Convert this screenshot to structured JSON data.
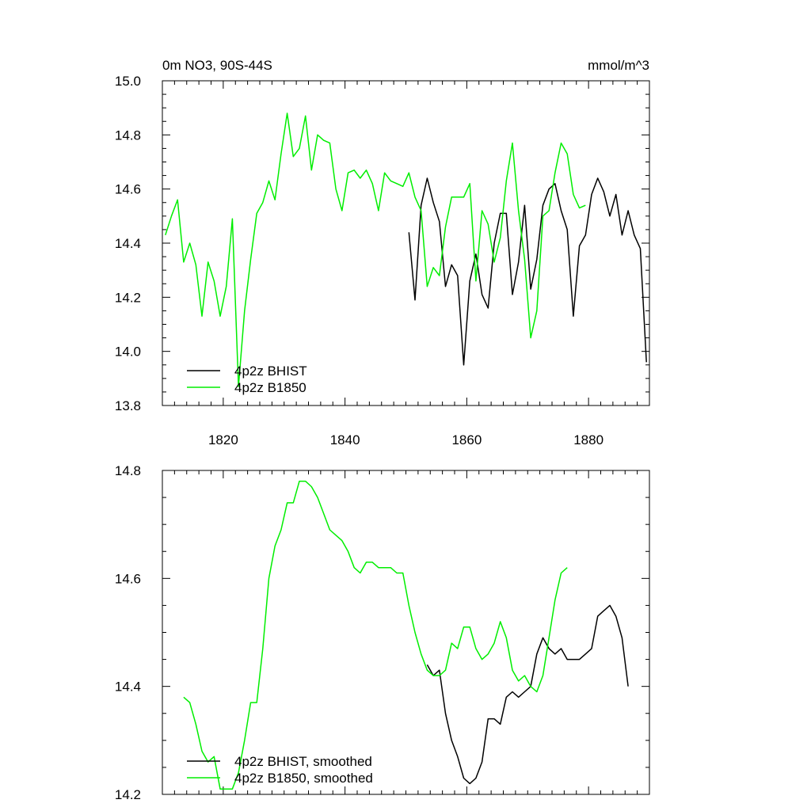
{
  "colors": {
    "BHIST": "#000000",
    "B1850": "#00ee00"
  },
  "chart_data": [
    {
      "type": "line",
      "title": "0m NO3, 90S-44S",
      "units": "mmol/m^3",
      "xlim": [
        1810,
        1890
      ],
      "ylim": [
        13.8,
        15.0
      ],
      "xticks": [
        1820,
        1840,
        1860,
        1880
      ],
      "xtick_labels": [
        "1820",
        "1840",
        "1860",
        "1880"
      ],
      "yticks": [
        13.8,
        14.0,
        14.2,
        14.4,
        14.6,
        14.8,
        15.0
      ],
      "ytick_labels": [
        "13.8",
        "14.0",
        "14.2",
        "14.4",
        "14.6",
        "14.8",
        "15.0"
      ],
      "legend": [
        "4p2z BHIST",
        "4p2z B1850"
      ],
      "legend_position": "bottom-left",
      "series": [
        {
          "name": "4p2z BHIST",
          "key": "BHIST",
          "x": [
            1850.5,
            1851.5,
            1852.5,
            1853.5,
            1854.5,
            1855.5,
            1856.5,
            1857.5,
            1858.5,
            1859.5,
            1860.5,
            1861.5,
            1862.5,
            1863.5,
            1864.5,
            1865.5,
            1866.5,
            1867.5,
            1868.5,
            1869.5,
            1870.5,
            1871.5,
            1872.5,
            1873.5,
            1874.5,
            1875.5,
            1876.5,
            1877.5,
            1878.5,
            1879.5,
            1880.5,
            1881.5,
            1882.5,
            1883.5,
            1884.5,
            1885.5,
            1886.5,
            1887.5,
            1888.5,
            1889.5
          ],
          "y": [
            14.44,
            14.19,
            14.54,
            14.64,
            14.55,
            14.48,
            14.24,
            14.32,
            14.28,
            13.95,
            14.26,
            14.36,
            14.21,
            14.16,
            14.4,
            14.51,
            14.51,
            14.21,
            14.33,
            14.54,
            14.23,
            14.34,
            14.54,
            14.6,
            14.62,
            14.52,
            14.45,
            14.13,
            14.39,
            14.43,
            14.58,
            14.64,
            14.59,
            14.5,
            14.58,
            14.43,
            14.52,
            14.43,
            14.38,
            13.96
          ]
        },
        {
          "name": "4p2z B1850",
          "key": "B1850",
          "x": [
            1810.5,
            1811.5,
            1812.5,
            1813.5,
            1814.5,
            1815.5,
            1816.5,
            1817.5,
            1818.5,
            1819.5,
            1820.5,
            1821.5,
            1822.5,
            1823.5,
            1824.5,
            1825.5,
            1826.5,
            1827.5,
            1828.5,
            1829.5,
            1830.5,
            1831.5,
            1832.5,
            1833.5,
            1834.5,
            1835.5,
            1836.5,
            1837.5,
            1838.5,
            1839.5,
            1840.5,
            1841.5,
            1842.5,
            1843.5,
            1844.5,
            1845.5,
            1846.5,
            1847.5,
            1848.5,
            1849.5,
            1850.5,
            1851.5,
            1852.5,
            1853.5,
            1854.5,
            1855.5,
            1856.5,
            1857.5,
            1858.5,
            1859.5,
            1860.5,
            1861.5,
            1862.5,
            1863.5,
            1864.5,
            1865.5,
            1866.5,
            1867.5,
            1868.5,
            1869.5,
            1870.5,
            1871.5,
            1872.5,
            1873.5,
            1874.5,
            1875.5,
            1876.5,
            1877.5,
            1878.5,
            1879.5
          ],
          "y": [
            14.43,
            14.5,
            14.56,
            14.33,
            14.4,
            14.32,
            14.13,
            14.33,
            14.26,
            14.13,
            14.24,
            14.49,
            13.87,
            14.15,
            14.34,
            14.51,
            14.55,
            14.63,
            14.56,
            14.73,
            14.88,
            14.72,
            14.75,
            14.87,
            14.67,
            14.8,
            14.78,
            14.77,
            14.6,
            14.52,
            14.66,
            14.67,
            14.64,
            14.67,
            14.62,
            14.52,
            14.66,
            14.63,
            14.62,
            14.61,
            14.66,
            14.57,
            14.52,
            14.24,
            14.31,
            14.28,
            14.46,
            14.57,
            14.57,
            14.57,
            14.62,
            14.26,
            14.52,
            14.47,
            14.33,
            14.42,
            14.63,
            14.77,
            14.52,
            14.34,
            14.05,
            14.15,
            14.5,
            14.52,
            14.66,
            14.77,
            14.73,
            14.58,
            14.53,
            14.54
          ]
        }
      ]
    },
    {
      "type": "line",
      "xlim": [
        1810,
        1890
      ],
      "ylim": [
        14.2,
        14.8
      ],
      "xticks": [
        1820,
        1840,
        1860,
        1880
      ],
      "yticks": [
        14.2,
        14.4,
        14.6,
        14.8
      ],
      "ytick_labels": [
        "14.2",
        "14.4",
        "14.6",
        "14.8"
      ],
      "legend": [
        "4p2z BHIST, smoothed",
        "4p2z B1850, smoothed"
      ],
      "legend_position": "bottom-left",
      "series": [
        {
          "name": "4p2z BHIST, smoothed",
          "key": "BHIST",
          "x": [
            1853.5,
            1854.5,
            1855.5,
            1856.5,
            1857.5,
            1858.5,
            1859.5,
            1860.5,
            1861.5,
            1862.5,
            1863.5,
            1864.5,
            1865.5,
            1866.5,
            1867.5,
            1868.5,
            1869.5,
            1870.5,
            1871.5,
            1872.5,
            1873.5,
            1874.5,
            1875.5,
            1876.5,
            1877.5,
            1878.5,
            1879.5,
            1880.5,
            1881.5,
            1882.5,
            1883.5,
            1884.5,
            1885.5,
            1886.5
          ],
          "y": [
            14.44,
            14.42,
            14.43,
            14.35,
            14.3,
            14.27,
            14.23,
            14.22,
            14.23,
            14.26,
            14.34,
            14.34,
            14.33,
            14.38,
            14.39,
            14.38,
            14.39,
            14.4,
            14.46,
            14.49,
            14.47,
            14.46,
            14.47,
            14.45,
            14.45,
            14.45,
            14.46,
            14.47,
            14.53,
            14.54,
            14.55,
            14.53,
            14.49,
            14.4
          ]
        },
        {
          "name": "4p2z B1850, smoothed",
          "key": "B1850",
          "x": [
            1813.5,
            1814.5,
            1815.5,
            1816.5,
            1817.5,
            1818.5,
            1819.5,
            1820.5,
            1821.5,
            1822.5,
            1823.5,
            1824.5,
            1825.5,
            1826.5,
            1827.5,
            1828.5,
            1829.5,
            1830.5,
            1831.5,
            1832.5,
            1833.5,
            1834.5,
            1835.5,
            1836.5,
            1837.5,
            1838.5,
            1839.5,
            1840.5,
            1841.5,
            1842.5,
            1843.5,
            1844.5,
            1845.5,
            1846.5,
            1847.5,
            1848.5,
            1849.5,
            1850.5,
            1851.5,
            1852.5,
            1853.5,
            1854.5,
            1855.5,
            1856.5,
            1857.5,
            1858.5,
            1859.5,
            1860.5,
            1861.5,
            1862.5,
            1863.5,
            1864.5,
            1865.5,
            1866.5,
            1867.5,
            1868.5,
            1869.5,
            1870.5,
            1871.5,
            1872.5,
            1873.5,
            1874.5,
            1875.5,
            1876.5
          ],
          "y": [
            14.38,
            14.37,
            14.33,
            14.28,
            14.26,
            14.27,
            14.21,
            14.21,
            14.21,
            14.24,
            14.3,
            14.37,
            14.37,
            14.47,
            14.6,
            14.66,
            14.69,
            14.74,
            14.74,
            14.78,
            14.78,
            14.77,
            14.75,
            14.72,
            14.69,
            14.68,
            14.67,
            14.65,
            14.62,
            14.61,
            14.63,
            14.63,
            14.62,
            14.62,
            14.62,
            14.61,
            14.61,
            14.55,
            14.5,
            14.46,
            14.43,
            14.42,
            14.42,
            14.43,
            14.48,
            14.47,
            14.51,
            14.51,
            14.47,
            14.45,
            14.46,
            14.48,
            14.52,
            14.49,
            14.43,
            14.41,
            14.42,
            14.4,
            14.39,
            14.42,
            14.49,
            14.56,
            14.61,
            14.62
          ]
        }
      ]
    }
  ]
}
